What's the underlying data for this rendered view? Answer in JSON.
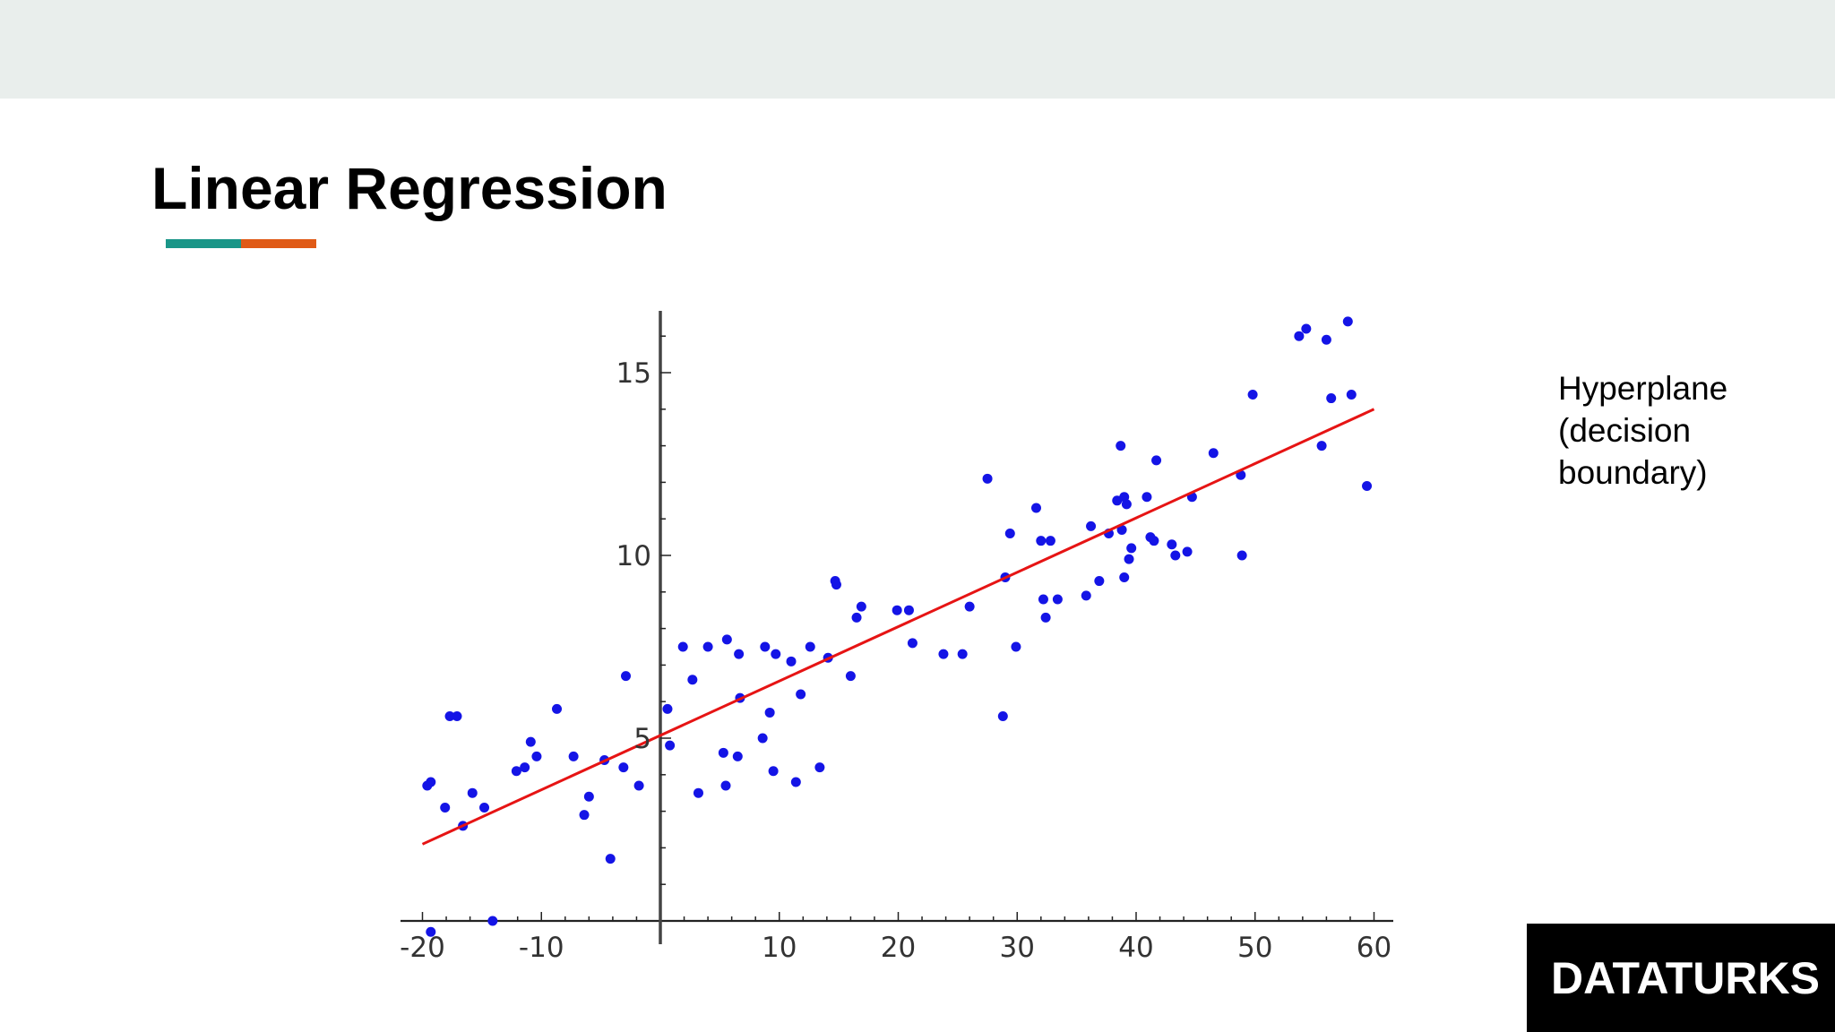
{
  "slide": {
    "title": "Linear Regression",
    "underline_colors": [
      "#1a9688",
      "#e05a16"
    ],
    "annotation_lines": [
      "Hyperplane",
      "(decision",
      "boundary)"
    ],
    "logo_text": "DATATURKS",
    "top_band_color": "#e9eeec"
  },
  "chart_data": {
    "type": "scatter",
    "title": "",
    "xlabel": "",
    "ylabel": "",
    "xlim": [
      -21,
      61
    ],
    "ylim": [
      -0.5,
      16.8
    ],
    "x_ticks": [
      -20,
      -10,
      10,
      20,
      30,
      40,
      50,
      60
    ],
    "x_tick_labels": [
      "-20",
      "-10",
      "10",
      "20",
      "30",
      "40",
      "50",
      "60"
    ],
    "y_ticks": [
      5,
      10,
      15
    ],
    "y_tick_labels": [
      "5",
      "10",
      "15"
    ],
    "grid": false,
    "point_color": "#1414e6",
    "line_color": "#e61414",
    "regression_line": {
      "x": [
        -20,
        60
      ],
      "y": [
        2.1,
        14.0
      ]
    },
    "points": {
      "x": [
        -19.6,
        -19.3,
        -17.7,
        -18.1,
        -17.1,
        -16.6,
        -15.8,
        -14.8,
        -12.1,
        -11.4,
        -10.9,
        -10.4,
        -8.7,
        -7.3,
        -6.4,
        -6.0,
        -4.7,
        -4.2,
        -3.1,
        -2.9,
        -1.8,
        0.6,
        0.8,
        1.9,
        2.7,
        3.2,
        4.0,
        5.3,
        5.5,
        5.6,
        6.5,
        6.6,
        6.7,
        8.6,
        8.8,
        9.2,
        9.5,
        9.7,
        11.0,
        11.4,
        11.8,
        12.6,
        13.4,
        14.1,
        14.7,
        14.8,
        16.0,
        16.5,
        16.9,
        19.9,
        20.9,
        21.2,
        23.8,
        25.4,
        26.0,
        27.5,
        28.8,
        29.0,
        29.4,
        29.9,
        31.6,
        32.0,
        32.2,
        32.4,
        32.8,
        33.4,
        35.8,
        36.2,
        36.9,
        37.7,
        38.4,
        38.7,
        38.8,
        39.0,
        39.0,
        39.2,
        39.4,
        39.6,
        40.9,
        41.2,
        41.5,
        41.7,
        43.0,
        43.3,
        44.3,
        44.7,
        46.5,
        48.8,
        48.9,
        49.8,
        53.7,
        54.3,
        55.6,
        56.0,
        56.4,
        57.8,
        58.1,
        59.4,
        -19.3,
        -14.1
      ],
      "y": [
        3.7,
        3.8,
        5.6,
        3.1,
        5.6,
        2.6,
        3.5,
        3.1,
        4.1,
        4.2,
        4.9,
        4.5,
        5.8,
        4.5,
        2.9,
        3.4,
        4.4,
        1.7,
        4.2,
        6.7,
        3.7,
        5.8,
        4.8,
        7.5,
        6.6,
        3.5,
        7.5,
        4.6,
        3.7,
        7.7,
        4.5,
        7.3,
        6.1,
        5.0,
        7.5,
        5.7,
        4.1,
        7.3,
        7.1,
        3.8,
        6.2,
        7.5,
        4.2,
        7.2,
        9.3,
        9.2,
        6.7,
        8.3,
        8.6,
        8.5,
        8.5,
        7.6,
        7.3,
        7.3,
        8.6,
        12.1,
        5.6,
        9.4,
        10.6,
        7.5,
        11.3,
        10.4,
        8.8,
        8.3,
        10.4,
        8.8,
        8.9,
        10.8,
        9.3,
        10.6,
        11.5,
        13.0,
        10.7,
        9.4,
        11.6,
        11.4,
        9.9,
        10.2,
        11.6,
        10.5,
        10.4,
        12.6,
        10.3,
        10.0,
        10.1,
        11.6,
        12.8,
        12.2,
        10.0,
        14.4,
        16.0,
        16.2,
        13.0,
        15.9,
        14.3,
        16.4,
        14.4,
        11.9,
        -0.3,
        -0.0
      ]
    }
  }
}
